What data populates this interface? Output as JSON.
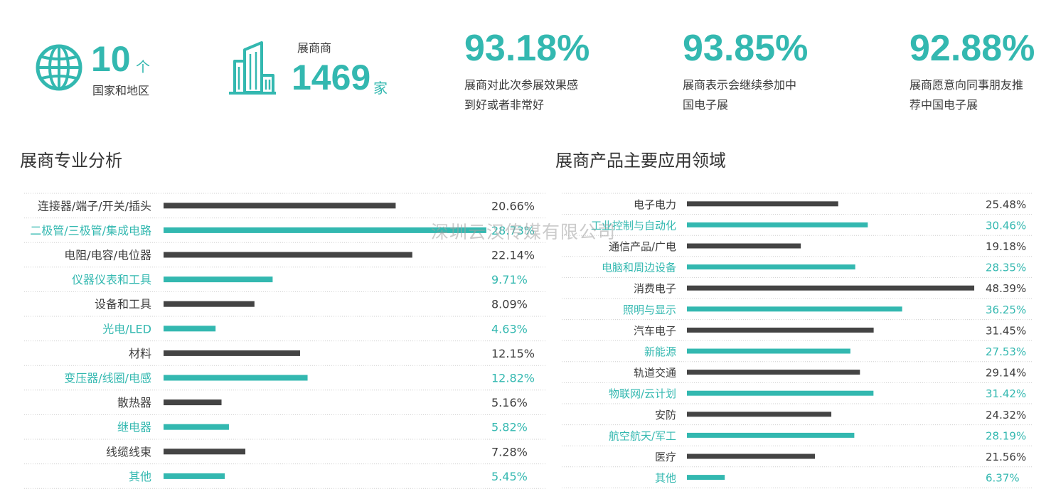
{
  "stats": {
    "countries": {
      "value": "10",
      "unit": "个",
      "label": "国家和地区",
      "icon": "globe-icon"
    },
    "exhibitors": {
      "top_label": "展商商",
      "value": "1469",
      "unit": "家",
      "icon": "building-icon"
    },
    "kpis": [
      {
        "value": "93.18%",
        "desc_line1": "展商对此次参展效果感",
        "desc_line2": "到好或者非常好"
      },
      {
        "value": "93.85%",
        "desc_line1": "展商表示会继续参加中",
        "desc_line2": "国电子展"
      },
      {
        "value": "92.88%",
        "desc_line1": "展商愿意向同事朋友推",
        "desc_line2": "荐中国电子展"
      }
    ]
  },
  "watermark": "深圳云汉传媒有限公司",
  "colors": {
    "teal": "#33b8b0",
    "dark": "#444444"
  },
  "chart_data": [
    {
      "type": "bar",
      "orientation": "horizontal",
      "title": "展商专业分析",
      "categories": [
        "连接器/端子/开关/插头",
        "二极管/三极管/集成电路",
        "电阻/电容/电位器",
        "仪器仪表和工具",
        "设备和工具",
        "光电/LED",
        "材料",
        "变压器/线圈/电感",
        "散热器",
        "继电器",
        "线缆线束",
        "其他"
      ],
      "values": [
        20.66,
        28.73,
        22.14,
        9.71,
        8.09,
        4.63,
        12.15,
        12.82,
        5.16,
        5.82,
        7.28,
        5.45
      ],
      "value_labels": [
        "20.66%",
        "28.73%",
        "22.14%",
        "9.71%",
        "8.09%",
        "4.63%",
        "12.15%",
        "12.82%",
        "5.16%",
        "5.82%",
        "7.28%",
        "5.45%"
      ],
      "bar_colors": [
        "dark",
        "teal",
        "dark",
        "teal",
        "dark",
        "teal",
        "dark",
        "teal",
        "dark",
        "teal",
        "dark",
        "teal"
      ]
    },
    {
      "type": "bar",
      "orientation": "horizontal",
      "title": "展商产品主要应用领域",
      "categories": [
        "电子电力",
        "工业控制与自动化",
        "通信产品/广电",
        "电脑和周边设备",
        "消费电子",
        "照明与显示",
        "汽车电子",
        "新能源",
        "轨道交通",
        "物联网/云计划",
        "安防",
        "航空航天/军工",
        "医疗",
        "其他"
      ],
      "values": [
        25.48,
        30.46,
        19.18,
        28.35,
        48.39,
        36.25,
        31.45,
        27.53,
        29.14,
        31.42,
        24.32,
        28.19,
        21.56,
        6.37
      ],
      "value_labels": [
        "25.48%",
        "30.46%",
        "19.18%",
        "28.35%",
        "48.39%",
        "36.25%",
        "31.45%",
        "27.53%",
        "29.14%",
        "31.42%",
        "24.32%",
        "28.19%",
        "21.56%",
        "6.37%"
      ],
      "bar_colors": [
        "dark",
        "teal",
        "dark",
        "teal",
        "dark",
        "teal",
        "dark",
        "teal",
        "dark",
        "teal",
        "dark",
        "teal",
        "dark",
        "teal"
      ]
    }
  ]
}
